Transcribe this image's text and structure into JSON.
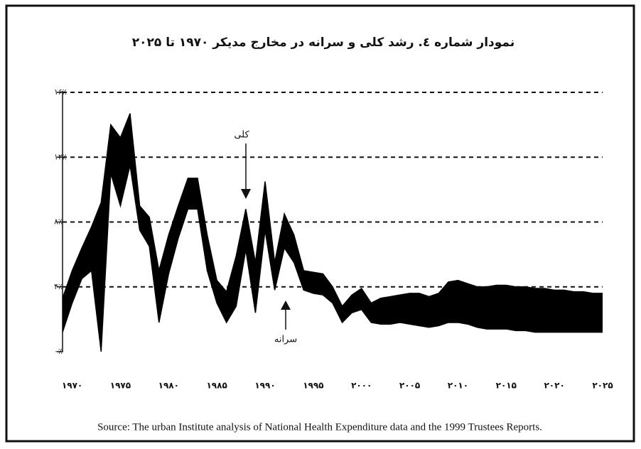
{
  "chart_data": {
    "type": "band",
    "title": "نمودار شماره ٤. رشد کلی و سرانه در مخارج مدیکر ۱۹۷۰ تا ۲۰۲۵",
    "source": "Source: The urban Institute analysis of National Health Expenditure data and the 1999 Trustees Reports.",
    "annotations": [
      {
        "text": "کلی"
      },
      {
        "text": "سرانه"
      }
    ],
    "x": [
      1969,
      1970,
      1971,
      1972,
      1973,
      1974,
      1975,
      1976,
      1977,
      1978,
      1979,
      1980,
      1981,
      1982,
      1983,
      1984,
      1985,
      1986,
      1987,
      1988,
      1989,
      1990,
      1991,
      1992,
      1993,
      1994,
      1995,
      1996,
      1997,
      1998,
      1999,
      2000,
      2001,
      2002,
      2003,
      2004,
      2005,
      2006,
      2007,
      2008,
      2009,
      2010,
      2011,
      2012,
      2013,
      2014,
      2015,
      2016,
      2017,
      2018,
      2019,
      2020,
      2021,
      2022,
      2023,
      2024,
      2025
    ],
    "series": [
      {
        "name": "کلی",
        "color": "#000000",
        "values": [
          3.3,
          5.0,
          6.4,
          7.7,
          9.2,
          14.0,
          13.2,
          14.7,
          9.0,
          8.3,
          5.0,
          7.2,
          9.0,
          10.7,
          10.7,
          7.2,
          4.4,
          3.7,
          5.9,
          8.8,
          5.5,
          10.5,
          5.5,
          8.5,
          7.2,
          5.0,
          4.9,
          4.8,
          4.0,
          2.8,
          3.5,
          3.9,
          3.0,
          3.3,
          3.4,
          3.5,
          3.6,
          3.6,
          3.4,
          3.6,
          4.3,
          4.4,
          4.2,
          4.0,
          4.0,
          4.1,
          4.1,
          4.0,
          4.0,
          3.9,
          3.9,
          3.8,
          3.8,
          3.7,
          3.7,
          3.6,
          3.6
        ]
      },
      {
        "name": "سرانه",
        "color": "#000000",
        "values": [
          1.2,
          3.0,
          4.5,
          5.0,
          0.0,
          11.0,
          9.0,
          11.5,
          7.5,
          6.5,
          1.8,
          4.8,
          7.0,
          8.8,
          8.8,
          5.0,
          3.0,
          1.8,
          2.8,
          6.3,
          2.4,
          7.5,
          3.8,
          6.4,
          5.5,
          3.8,
          3.6,
          3.5,
          3.0,
          1.8,
          2.4,
          2.6,
          1.8,
          1.7,
          1.7,
          1.8,
          1.7,
          1.6,
          1.5,
          1.6,
          1.8,
          1.8,
          1.7,
          1.5,
          1.4,
          1.4,
          1.4,
          1.3,
          1.3,
          1.2,
          1.2,
          1.2,
          1.2,
          1.2,
          1.2,
          1.2,
          1.2
        ]
      }
    ],
    "xlim": [
      1969,
      2025
    ],
    "xticks": [
      {
        "value": 1970,
        "label": "۱۹۷۰"
      },
      {
        "value": 1975,
        "label": "۱۹۷۵"
      },
      {
        "value": 1980,
        "label": "۱۹۸۰"
      },
      {
        "value": 1985,
        "label": "۱۹۸۵"
      },
      {
        "value": 1990,
        "label": "۱۹۹۰"
      },
      {
        "value": 1995,
        "label": "۱۹۹۵"
      },
      {
        "value": 2000,
        "label": "۲۰۰۰"
      },
      {
        "value": 2005,
        "label": "۲۰۰۵"
      },
      {
        "value": 2010,
        "label": "۲۰۱۰"
      },
      {
        "value": 2015,
        "label": "۲۰۱۵"
      },
      {
        "value": 2020,
        "label": "۲۰۲۰"
      },
      {
        "value": 2025,
        "label": "۲۰۲۵"
      }
    ],
    "ylim": [
      0,
      16
    ],
    "yticks": [
      {
        "value": 0,
        "label": "۰٪"
      },
      {
        "value": 4,
        "label": "۴٪"
      },
      {
        "value": 8,
        "label": "۸٪"
      },
      {
        "value": 12,
        "label": "۱۲٪"
      },
      {
        "value": 16,
        "label": "۱۶٪"
      }
    ],
    "grid": true
  }
}
